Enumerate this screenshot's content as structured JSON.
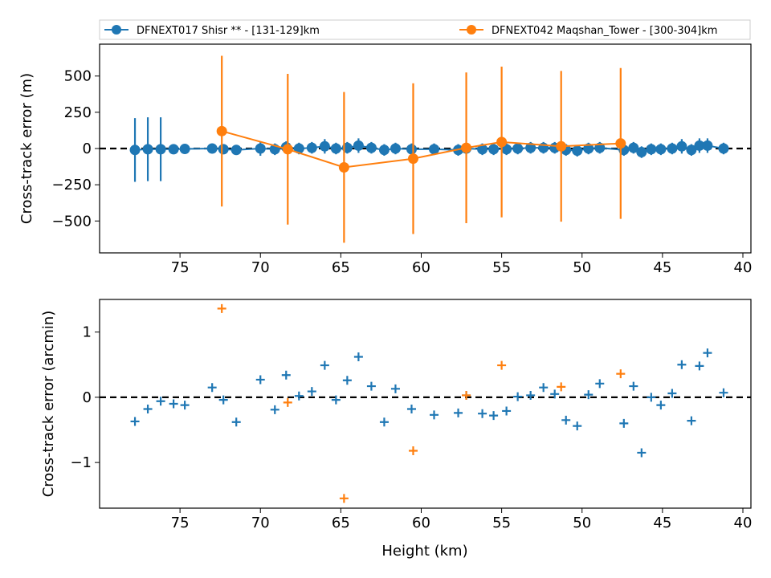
{
  "legend": {
    "placement": "top, above plot",
    "entries": [
      {
        "label": "DFNEXT017 Shisr **  - [131-129]km",
        "color": "#1f77b4"
      },
      {
        "label": "DFNEXT042 Maqshan_Tower - [300-304]km",
        "color": "#ff7f0e"
      }
    ]
  },
  "chart_data": [
    {
      "type": "scatter",
      "xlabel": "",
      "ylabel": "Cross-track error (m)",
      "xlim": [
        80,
        39.5
      ],
      "ylim": [
        -720,
        720
      ],
      "x_ticks": [
        75,
        70,
        65,
        60,
        55,
        50,
        45,
        40
      ],
      "y_ticks": [
        500,
        250,
        0,
        -250,
        -500
      ],
      "y_tick_labels": [
        "500",
        "250",
        "0",
        "−250",
        "−500"
      ],
      "zero_line": true,
      "series": [
        {
          "name": "DFNEXT017 Shisr **  - [131-129]km",
          "color": "#1f77b4",
          "marker": "circle",
          "line": true,
          "x": [
            77.8,
            77.0,
            76.2,
            75.4,
            74.7,
            73.0,
            72.3,
            71.5,
            70.0,
            69.1,
            68.4,
            67.6,
            66.8,
            66.0,
            65.3,
            64.6,
            63.9,
            63.1,
            62.3,
            61.6,
            60.6,
            59.2,
            57.7,
            57.2,
            56.2,
            55.5,
            54.7,
            54.0,
            53.2,
            52.4,
            51.7,
            51.0,
            50.3,
            49.6,
            48.9,
            47.4,
            46.8,
            46.3,
            45.7,
            45.1,
            44.4,
            43.8,
            43.2,
            42.7,
            42.2,
            41.2
          ],
          "y": [
            -10,
            -5,
            -5,
            -5,
            -3,
            0,
            -5,
            -10,
            0,
            -5,
            10,
            0,
            5,
            15,
            0,
            5,
            20,
            5,
            -10,
            0,
            -5,
            -5,
            -10,
            0,
            -5,
            -5,
            -5,
            0,
            5,
            5,
            5,
            -10,
            -15,
            0,
            5,
            -10,
            5,
            -25,
            -5,
            -5,
            0,
            15,
            -10,
            20,
            20,
            0
          ],
          "y_err": [
            220,
            220,
            220,
            30,
            30,
            30,
            30,
            30,
            50,
            40,
            40,
            40,
            40,
            50,
            40,
            40,
            50,
            40,
            40,
            40,
            40,
            40,
            40,
            40,
            40,
            40,
            40,
            40,
            40,
            40,
            40,
            40,
            40,
            40,
            40,
            40,
            40,
            40,
            40,
            40,
            40,
            50,
            40,
            50,
            50,
            40
          ]
        },
        {
          "name": "DFNEXT042 Maqshan_Tower - [300-304]km",
          "color": "#ff7f0e",
          "marker": "circle",
          "line": true,
          "x": [
            72.4,
            68.3,
            64.8,
            60.5,
            57.2,
            55.0,
            51.3,
            47.6
          ],
          "y": [
            120,
            -5,
            -130,
            -70,
            5,
            45,
            15,
            35
          ],
          "y_err": [
            520,
            520,
            520,
            520,
            520,
            520,
            520,
            520
          ]
        }
      ]
    },
    {
      "type": "scatter",
      "xlabel": "Height (km)",
      "ylabel": "Cross-track error (arcmin)",
      "xlim": [
        80,
        39.5
      ],
      "ylim": [
        -1.7,
        1.5
      ],
      "x_ticks": [
        75,
        70,
        65,
        60,
        55,
        50,
        45,
        40
      ],
      "y_ticks": [
        1,
        0,
        -1
      ],
      "y_tick_labels": [
        "1",
        "0",
        "−1"
      ],
      "zero_line": true,
      "series": [
        {
          "name": "DFNEXT017 Shisr **  - [131-129]km",
          "color": "#1f77b4",
          "marker": "plus",
          "x": [
            77.8,
            77.0,
            76.2,
            75.4,
            74.7,
            73.0,
            72.3,
            71.5,
            70.0,
            69.1,
            68.4,
            67.6,
            66.8,
            66.0,
            65.3,
            64.6,
            63.9,
            63.1,
            62.3,
            61.6,
            60.6,
            59.2,
            57.7,
            57.2,
            56.2,
            55.5,
            54.7,
            54.0,
            53.2,
            52.4,
            51.7,
            51.0,
            50.3,
            49.6,
            48.9,
            47.4,
            46.8,
            46.3,
            45.7,
            45.1,
            44.4,
            43.8,
            43.2,
            42.7,
            42.2,
            41.2
          ],
          "y": [
            -0.37,
            -0.18,
            -0.06,
            -0.1,
            -0.12,
            0.15,
            -0.04,
            -0.38,
            0.27,
            -0.19,
            0.34,
            0.02,
            0.09,
            0.49,
            -0.04,
            0.26,
            0.62,
            0.17,
            -0.38,
            0.13,
            -0.18,
            -0.27,
            -0.24,
            0.03,
            -0.25,
            -0.28,
            -0.21,
            0.01,
            0.03,
            0.15,
            0.05,
            -0.35,
            -0.44,
            0.04,
            0.21,
            -0.4,
            0.17,
            -0.85,
            0.0,
            -0.12,
            0.06,
            0.5,
            -0.36,
            0.48,
            0.68,
            0.07
          ]
        },
        {
          "name": "DFNEXT042 Maqshan_Tower - [300-304]km",
          "color": "#ff7f0e",
          "marker": "plus",
          "x": [
            72.4,
            68.3,
            64.8,
            60.5,
            57.2,
            55.0,
            51.3,
            47.6
          ],
          "y": [
            1.36,
            -0.08,
            -1.55,
            -0.82,
            0.03,
            0.49,
            0.16,
            0.36
          ]
        }
      ]
    }
  ]
}
